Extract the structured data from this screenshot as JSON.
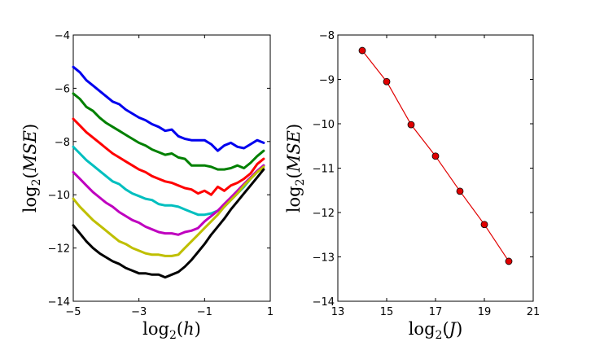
{
  "chart_data": [
    {
      "type": "line",
      "xlabel": "log2(h)",
      "ylabel": "log2(MSE)",
      "xlim": [
        -5,
        1
      ],
      "ylim": [
        -14,
        -4
      ],
      "xticks": [
        -5,
        -3,
        -1,
        1
      ],
      "yticks": [
        -14,
        -12,
        -10,
        -8,
        -6,
        -4
      ],
      "xtick_labels": [
        "−5",
        "−3",
        "−1",
        "1"
      ],
      "ytick_labels": [
        "−14",
        "−12",
        "−10",
        "−8",
        "−6",
        "−4"
      ],
      "xlabel_parts": {
        "fn": "log",
        "sub": "2",
        "open": "(",
        "var": "h",
        "close": ")"
      },
      "ylabel_parts": {
        "fn": "log",
        "sub": "2",
        "open": "(",
        "var": "MSE",
        "close": ")"
      },
      "x": [
        -5.0,
        -4.8,
        -4.6,
        -4.4,
        -4.2,
        -4.0,
        -3.8,
        -3.6,
        -3.4,
        -3.2,
        -3.0,
        -2.8,
        -2.6,
        -2.4,
        -2.2,
        -2.0,
        -1.8,
        -1.6,
        -1.4,
        -1.2,
        -1.0,
        -0.8,
        -0.6,
        -0.4,
        -0.2,
        0.0,
        0.2,
        0.4,
        0.6,
        0.8
      ],
      "series": [
        {
          "name": "blue",
          "color": "#0000ee",
          "values": [
            -5.2,
            -5.4,
            -5.7,
            -5.9,
            -6.1,
            -6.3,
            -6.5,
            -6.6,
            -6.8,
            -6.95,
            -7.1,
            -7.2,
            -7.35,
            -7.45,
            -7.6,
            -7.55,
            -7.8,
            -7.9,
            -7.95,
            -7.95,
            -7.95,
            -8.1,
            -8.35,
            -8.15,
            -8.05,
            -8.2,
            -8.25,
            -8.1,
            -7.95,
            -8.05
          ]
        },
        {
          "name": "green",
          "color": "#008000",
          "values": [
            -6.2,
            -6.4,
            -6.7,
            -6.85,
            -7.1,
            -7.3,
            -7.45,
            -7.6,
            -7.75,
            -7.9,
            -8.05,
            -8.15,
            -8.3,
            -8.4,
            -8.5,
            -8.45,
            -8.6,
            -8.65,
            -8.9,
            -8.9,
            -8.9,
            -8.95,
            -9.05,
            -9.05,
            -9.0,
            -8.9,
            -9.0,
            -8.8,
            -8.55,
            -8.35
          ]
        },
        {
          "name": "red",
          "color": "#ff0000",
          "values": [
            -7.15,
            -7.4,
            -7.65,
            -7.85,
            -8.05,
            -8.25,
            -8.45,
            -8.6,
            -8.75,
            -8.9,
            -9.05,
            -9.15,
            -9.3,
            -9.4,
            -9.5,
            -9.55,
            -9.65,
            -9.75,
            -9.8,
            -9.95,
            -9.85,
            -10.0,
            -9.7,
            -9.85,
            -9.65,
            -9.55,
            -9.4,
            -9.2,
            -8.85,
            -8.65
          ]
        },
        {
          "name": "cyan",
          "color": "#00bfbf",
          "values": [
            -8.2,
            -8.45,
            -8.7,
            -8.9,
            -9.1,
            -9.3,
            -9.5,
            -9.6,
            -9.8,
            -9.95,
            -10.05,
            -10.15,
            -10.2,
            -10.35,
            -10.4,
            -10.4,
            -10.45,
            -10.55,
            -10.65,
            -10.75,
            -10.75,
            -10.7,
            -10.6,
            -10.45,
            -10.2,
            -9.95,
            -9.7,
            -9.4,
            -9.15,
            -8.9
          ]
        },
        {
          "name": "magenta",
          "color": "#bf00bf",
          "values": [
            -9.15,
            -9.4,
            -9.65,
            -9.9,
            -10.1,
            -10.3,
            -10.45,
            -10.65,
            -10.8,
            -10.95,
            -11.05,
            -11.2,
            -11.3,
            -11.4,
            -11.45,
            -11.45,
            -11.5,
            -11.4,
            -11.35,
            -11.25,
            -11.0,
            -10.8,
            -10.6,
            -10.35,
            -10.1,
            -9.85,
            -9.6,
            -9.35,
            -9.1,
            -8.9
          ]
        },
        {
          "name": "yellow",
          "color": "#bfbf00",
          "values": [
            -10.15,
            -10.45,
            -10.7,
            -10.95,
            -11.15,
            -11.35,
            -11.55,
            -11.75,
            -11.85,
            -12.0,
            -12.1,
            -12.2,
            -12.25,
            -12.25,
            -12.3,
            -12.3,
            -12.25,
            -12.0,
            -11.75,
            -11.5,
            -11.25,
            -11.0,
            -10.75,
            -10.45,
            -10.2,
            -9.95,
            -9.65,
            -9.4,
            -9.15,
            -8.95
          ]
        },
        {
          "name": "black",
          "color": "#000000",
          "values": [
            -11.15,
            -11.45,
            -11.75,
            -12.0,
            -12.2,
            -12.35,
            -12.5,
            -12.6,
            -12.75,
            -12.85,
            -12.95,
            -12.95,
            -13.0,
            -13.0,
            -13.1,
            -13.0,
            -12.9,
            -12.7,
            -12.45,
            -12.15,
            -11.85,
            -11.5,
            -11.2,
            -10.9,
            -10.55,
            -10.25,
            -9.95,
            -9.65,
            -9.35,
            -9.05
          ]
        }
      ]
    },
    {
      "type": "line",
      "xlabel": "log2(J)",
      "ylabel": "log2(MSE)",
      "xlim": [
        13,
        21
      ],
      "ylim": [
        -14,
        -8
      ],
      "xticks": [
        13,
        15,
        17,
        19,
        21
      ],
      "yticks": [
        -14,
        -13,
        -12,
        -11,
        -10,
        -9,
        -8
      ],
      "xtick_labels": [
        "13",
        "15",
        "17",
        "19",
        "21"
      ],
      "ytick_labels": [
        "−14",
        "−13",
        "−12",
        "−11",
        "−10",
        "−9",
        "−8"
      ],
      "xlabel_parts": {
        "fn": "log",
        "sub": "2",
        "open": "(",
        "var": "J",
        "close": ")"
      },
      "ylabel_parts": {
        "fn": "log",
        "sub": "2",
        "open": "(",
        "var": "MSE",
        "close": ")"
      },
      "x": [
        14,
        15,
        16,
        17,
        18,
        19,
        20
      ],
      "series": [
        {
          "name": "red-markers",
          "color": "#e00000",
          "marker": "o",
          "values": [
            -8.35,
            -9.05,
            -10.02,
            -10.73,
            -11.52,
            -12.27,
            -13.1
          ]
        }
      ]
    }
  ]
}
